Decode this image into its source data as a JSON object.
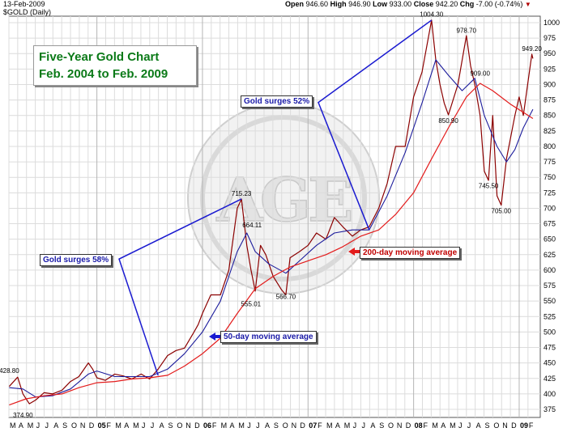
{
  "header": {
    "date": "13-Feb-2009",
    "symbol": "$GOLD (Daily)",
    "open_label": "Open",
    "open": "946.60",
    "high_label": "High",
    "high": "946.90",
    "low_label": "Low",
    "low": "933.00",
    "close_label": "Close",
    "close": "942.20",
    "chg_label": "Chg",
    "chg": "-7.00 (-0.74%)",
    "chg_arrow": "▼"
  },
  "title": {
    "line1": "Five-Year Gold Chart",
    "line2": "Feb. 2004 to Feb. 2009"
  },
  "annotations": {
    "surge58": "Gold surges 58%",
    "surge52": "Gold surges 52%",
    "ma50": "50-day moving average",
    "ma200": "200-day moving average"
  },
  "watermark": "AGE",
  "colors": {
    "price": "#8b0000",
    "ma50": "#1c1c9c",
    "ma200": "#e31b1b",
    "title": "#0b7a18",
    "grid": "#dcdcdc"
  },
  "chart_data": {
    "type": "line",
    "ylim": [
      375,
      1000
    ],
    "y_ticks": [
      375,
      400,
      425,
      450,
      475,
      500,
      525,
      550,
      575,
      600,
      625,
      650,
      675,
      700,
      725,
      750,
      775,
      800,
      825,
      850,
      875,
      900,
      925,
      950,
      975,
      1000
    ],
    "x_month_labels": [
      "M",
      "A",
      "M",
      "J",
      "J",
      "A",
      "S",
      "O",
      "N",
      "D",
      "05",
      "F",
      "M",
      "A",
      "M",
      "J",
      "J",
      "A",
      "S",
      "O",
      "N",
      "D",
      "06",
      "F",
      "M",
      "A",
      "M",
      "J",
      "J",
      "A",
      "S",
      "O",
      "N",
      "D",
      "07",
      "F",
      "M",
      "A",
      "M",
      "J",
      "J",
      "A",
      "S",
      "O",
      "N",
      "D",
      "08",
      "F",
      "M",
      "A",
      "M",
      "J",
      "J",
      "A",
      "S",
      "O",
      "N",
      "D",
      "09",
      "F"
    ],
    "x_start": 2004.167,
    "x_end": 2009.2,
    "series": [
      {
        "name": "$GOLD (Daily)",
        "points": [
          [
            2004.17,
            412
          ],
          [
            2004.25,
            427
          ],
          [
            2004.3,
            400
          ],
          [
            2004.36,
            384
          ],
          [
            2004.42,
            390
          ],
          [
            2004.5,
            402
          ],
          [
            2004.58,
            400
          ],
          [
            2004.67,
            406
          ],
          [
            2004.75,
            420
          ],
          [
            2004.83,
            428
          ],
          [
            2004.92,
            450
          ],
          [
            2004.96,
            440
          ],
          [
            2005.0,
            426
          ],
          [
            2005.08,
            422
          ],
          [
            2005.17,
            432
          ],
          [
            2005.25,
            429
          ],
          [
            2005.33,
            424
          ],
          [
            2005.42,
            432
          ],
          [
            2005.5,
            424
          ],
          [
            2005.58,
            440
          ],
          [
            2005.67,
            462
          ],
          [
            2005.75,
            470
          ],
          [
            2005.83,
            474
          ],
          [
            2005.92,
            500
          ],
          [
            2005.96,
            512
          ],
          [
            2006.0,
            530
          ],
          [
            2006.08,
            560
          ],
          [
            2006.17,
            560
          ],
          [
            2006.25,
            600
          ],
          [
            2006.33,
            700
          ],
          [
            2006.37,
            715
          ],
          [
            2006.42,
            640
          ],
          [
            2006.46,
            600
          ],
          [
            2006.5,
            566
          ],
          [
            2006.55,
            640
          ],
          [
            2006.6,
            625
          ],
          [
            2006.67,
            590
          ],
          [
            2006.75,
            568
          ],
          [
            2006.79,
            560
          ],
          [
            2006.83,
            620
          ],
          [
            2006.92,
            630
          ],
          [
            2007.0,
            640
          ],
          [
            2007.08,
            660
          ],
          [
            2007.17,
            650
          ],
          [
            2007.25,
            685
          ],
          [
            2007.33,
            670
          ],
          [
            2007.42,
            655
          ],
          [
            2007.5,
            665
          ],
          [
            2007.58,
            670
          ],
          [
            2007.67,
            700
          ],
          [
            2007.75,
            740
          ],
          [
            2007.83,
            800
          ],
          [
            2007.92,
            800
          ],
          [
            2008.0,
            880
          ],
          [
            2008.08,
            920
          ],
          [
            2008.17,
            1004
          ],
          [
            2008.21,
            940
          ],
          [
            2008.25,
            900
          ],
          [
            2008.29,
            870
          ],
          [
            2008.33,
            851
          ],
          [
            2008.42,
            900
          ],
          [
            2008.5,
            979
          ],
          [
            2008.54,
            930
          ],
          [
            2008.58,
            900
          ],
          [
            2008.63,
            850
          ],
          [
            2008.67,
            760
          ],
          [
            2008.71,
            745
          ],
          [
            2008.75,
            850
          ],
          [
            2008.79,
            720
          ],
          [
            2008.83,
            705
          ],
          [
            2008.88,
            780
          ],
          [
            2008.96,
            850
          ],
          [
            2009.0,
            880
          ],
          [
            2009.04,
            850
          ],
          [
            2009.08,
            900
          ],
          [
            2009.12,
            949
          ],
          [
            2009.13,
            942
          ]
        ]
      },
      {
        "name": "50-day moving average",
        "points": [
          [
            2004.17,
            410
          ],
          [
            2004.3,
            408
          ],
          [
            2004.42,
            395
          ],
          [
            2004.58,
            397
          ],
          [
            2004.75,
            408
          ],
          [
            2004.92,
            432
          ],
          [
            2005.0,
            437
          ],
          [
            2005.17,
            428
          ],
          [
            2005.33,
            428
          ],
          [
            2005.5,
            428
          ],
          [
            2005.67,
            440
          ],
          [
            2005.83,
            465
          ],
          [
            2006.0,
            500
          ],
          [
            2006.17,
            550
          ],
          [
            2006.33,
            630
          ],
          [
            2006.42,
            660
          ],
          [
            2006.5,
            630
          ],
          [
            2006.63,
            610
          ],
          [
            2006.79,
            595
          ],
          [
            2006.92,
            615
          ],
          [
            2007.08,
            640
          ],
          [
            2007.25,
            660
          ],
          [
            2007.42,
            665
          ],
          [
            2007.58,
            665
          ],
          [
            2007.75,
            720
          ],
          [
            2007.92,
            790
          ],
          [
            2008.08,
            870
          ],
          [
            2008.21,
            940
          ],
          [
            2008.33,
            915
          ],
          [
            2008.46,
            890
          ],
          [
            2008.58,
            910
          ],
          [
            2008.67,
            850
          ],
          [
            2008.79,
            800
          ],
          [
            2008.88,
            775
          ],
          [
            2008.96,
            795
          ],
          [
            2009.04,
            830
          ],
          [
            2009.13,
            860
          ]
        ]
      },
      {
        "name": "200-day moving average",
        "points": [
          [
            2004.17,
            382
          ],
          [
            2004.33,
            392
          ],
          [
            2004.5,
            397
          ],
          [
            2004.67,
            400
          ],
          [
            2004.83,
            410
          ],
          [
            2005.0,
            418
          ],
          [
            2005.17,
            420
          ],
          [
            2005.33,
            424
          ],
          [
            2005.5,
            426
          ],
          [
            2005.67,
            430
          ],
          [
            2005.83,
            445
          ],
          [
            2006.0,
            465
          ],
          [
            2006.17,
            490
          ],
          [
            2006.33,
            530
          ],
          [
            2006.5,
            570
          ],
          [
            2006.67,
            590
          ],
          [
            2006.83,
            605
          ],
          [
            2007.0,
            615
          ],
          [
            2007.17,
            625
          ],
          [
            2007.33,
            638
          ],
          [
            2007.5,
            655
          ],
          [
            2007.67,
            665
          ],
          [
            2007.83,
            690
          ],
          [
            2008.0,
            725
          ],
          [
            2008.17,
            780
          ],
          [
            2008.33,
            830
          ],
          [
            2008.5,
            880
          ],
          [
            2008.63,
            902
          ],
          [
            2008.75,
            890
          ],
          [
            2008.92,
            868
          ],
          [
            2009.04,
            855
          ],
          [
            2009.13,
            845
          ]
        ]
      }
    ],
    "labels": [
      {
        "text": "428.80",
        "x": 2004.17,
        "y": 428.8
      },
      {
        "text": "374.90",
        "x": 2004.3,
        "y": 374.9
      },
      {
        "text": "715.23",
        "x": 2006.37,
        "y": 715.2
      },
      {
        "text": "664.11",
        "x": 2006.47,
        "y": 664.1
      },
      {
        "text": "555.01",
        "x": 2006.46,
        "y": 555.0
      },
      {
        "text": "566.70",
        "x": 2006.79,
        "y": 566.7
      },
      {
        "text": "1004.30",
        "x": 2008.17,
        "y": 1004.3
      },
      {
        "text": "850.90",
        "x": 2008.33,
        "y": 850.9
      },
      {
        "text": "978.70",
        "x": 2008.5,
        "y": 978.7
      },
      {
        "text": "909.00",
        "x": 2008.63,
        "y": 909.0
      },
      {
        "text": "745.50",
        "x": 2008.71,
        "y": 745.5
      },
      {
        "text": "705.00",
        "x": 2008.83,
        "y": 705.0
      },
      {
        "text": "949.20",
        "x": 2009.12,
        "y": 949.2
      }
    ],
    "trendlines": [
      {
        "name": "Gold surges 58%",
        "from": [
          2005.58,
          430
        ],
        "to": [
          2006.37,
          715
        ]
      },
      {
        "name": "Gold surges 52%",
        "from": [
          2007.58,
          665
        ],
        "to": [
          2008.17,
          1004
        ]
      }
    ]
  }
}
